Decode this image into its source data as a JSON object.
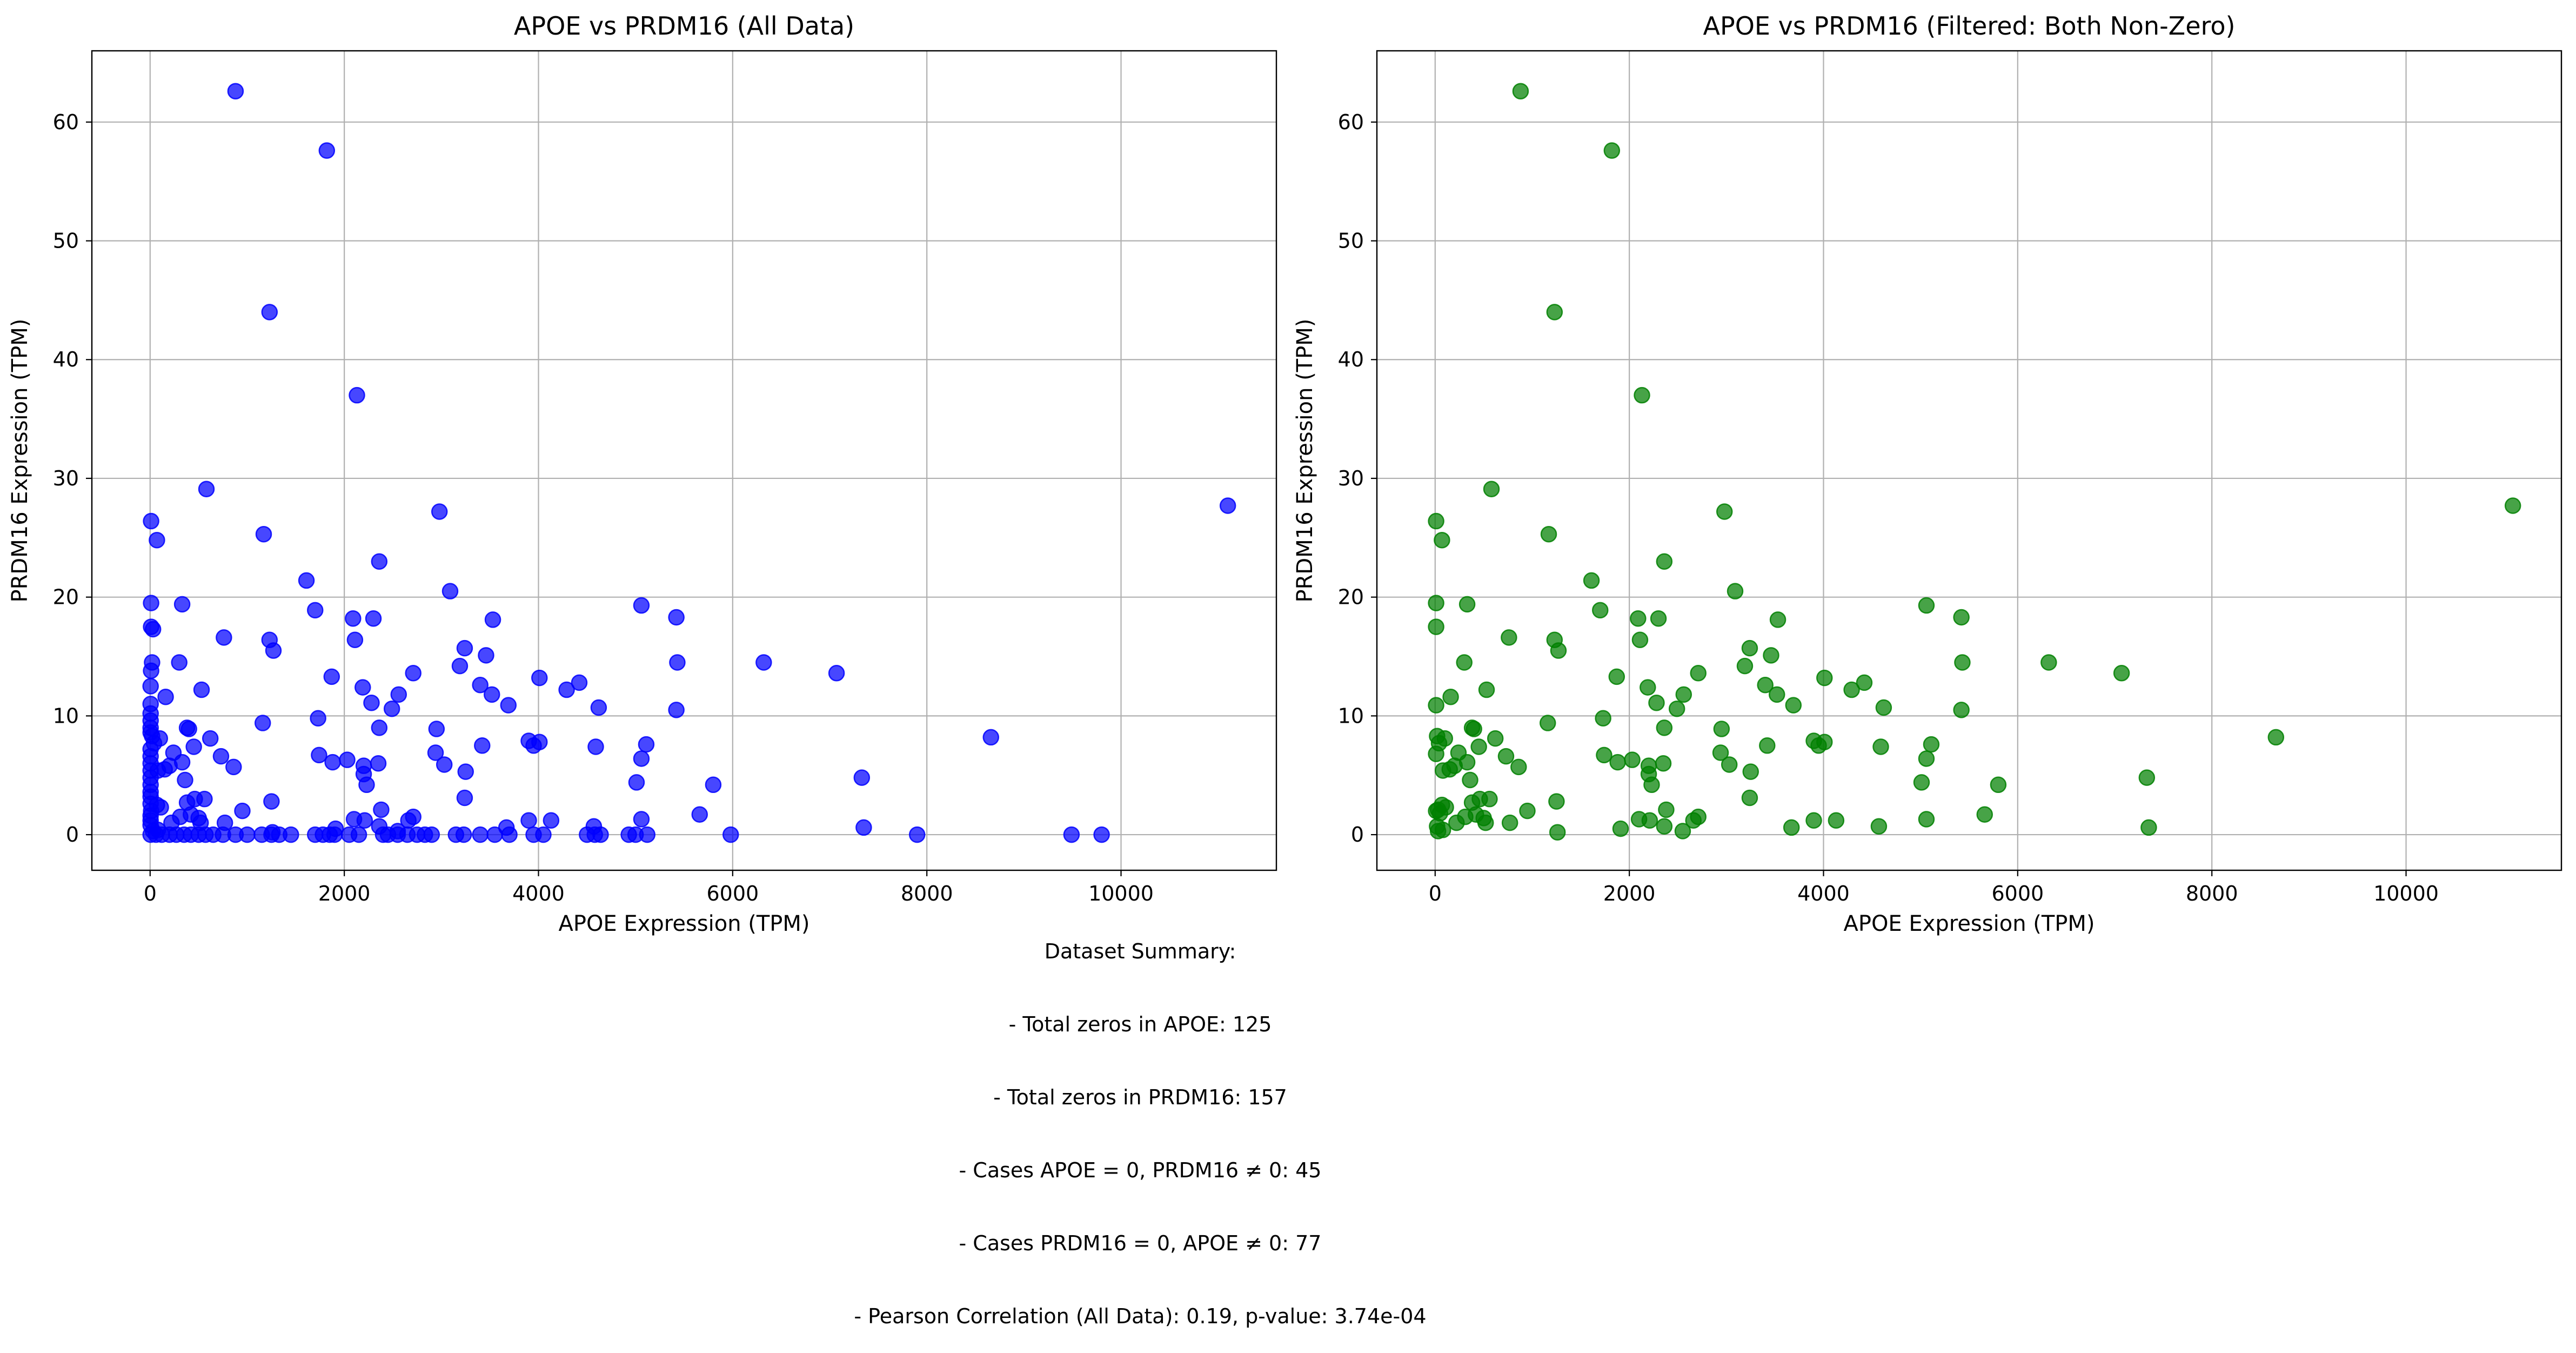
{
  "summary": {
    "heading": "Dataset Summary:",
    "lines": [
      "- Total zeros in APOE: 125",
      "- Total zeros in PRDM16: 157",
      "- Cases APOE = 0, PRDM16 ≠ 0: 45",
      "- Cases PRDM16 = 0, APOE ≠ 0: 77",
      "- Pearson Correlation (All Data): 0.19, p-value: 3.74e-04"
    ]
  },
  "chart_data": [
    {
      "type": "scatter",
      "title": "APOE vs PRDM16 (All Data)",
      "xlabel": "APOE Expression (TPM)",
      "ylabel": "PRDM16 Expression (TPM)",
      "color": "#0000ff",
      "xlim": [
        -600,
        11600
      ],
      "ylim": [
        -3,
        66
      ],
      "xticks": [
        0,
        2000,
        4000,
        6000,
        8000,
        10000
      ],
      "yticks": [
        0,
        10,
        20,
        30,
        40,
        50,
        60
      ],
      "grid": true,
      "points": [
        [
          880,
          62.6
        ],
        [
          1820,
          57.6
        ],
        [
          1230,
          44
        ],
        [
          2130,
          37
        ],
        [
          580,
          29.1
        ],
        [
          2980,
          27.2
        ],
        [
          11100,
          27.7
        ],
        [
          10,
          26.4
        ],
        [
          70,
          24.8
        ],
        [
          1170,
          25.3
        ],
        [
          2360,
          23
        ],
        [
          1610,
          21.4
        ],
        [
          3090,
          20.5
        ],
        [
          5060,
          19.3
        ],
        [
          10,
          19.5
        ],
        [
          330,
          19.4
        ],
        [
          1700,
          18.9
        ],
        [
          2090,
          18.2
        ],
        [
          2300,
          18.2
        ],
        [
          3530,
          18.1
        ],
        [
          5420,
          18.3
        ],
        [
          10,
          17.5
        ],
        [
          30,
          17.3
        ],
        [
          760,
          16.6
        ],
        [
          1230,
          16.4
        ],
        [
          2110,
          16.4
        ],
        [
          1270,
          15.5
        ],
        [
          3240,
          15.7
        ],
        [
          3460,
          15.1
        ],
        [
          300,
          14.5
        ],
        [
          3190,
          14.2
        ],
        [
          6320,
          14.5
        ],
        [
          5430,
          14.5
        ],
        [
          20,
          14.5
        ],
        [
          10,
          13.8
        ],
        [
          1870,
          13.3
        ],
        [
          2710,
          13.6
        ],
        [
          4010,
          13.2
        ],
        [
          4420,
          12.8
        ],
        [
          7070,
          13.6
        ],
        [
          530,
          12.2
        ],
        [
          2190,
          12.4
        ],
        [
          3400,
          12.6
        ],
        [
          4290,
          12.2
        ],
        [
          2560,
          11.8
        ],
        [
          3520,
          11.8
        ],
        [
          160,
          11.6
        ],
        [
          2280,
          11.1
        ],
        [
          2490,
          10.6
        ],
        [
          3690,
          10.9
        ],
        [
          4620,
          10.7
        ],
        [
          5420,
          10.5
        ],
        [
          1160,
          9.4
        ],
        [
          1730,
          9.8
        ],
        [
          2360,
          9
        ],
        [
          2950,
          8.9
        ],
        [
          380,
          9
        ],
        [
          400,
          8.9
        ],
        [
          620,
          8.1
        ],
        [
          100,
          8.1
        ],
        [
          8660,
          8.2
        ],
        [
          3900,
          7.9
        ],
        [
          3950,
          7.5
        ],
        [
          4010,
          7.8
        ],
        [
          3420,
          7.5
        ],
        [
          4590,
          7.4
        ],
        [
          5110,
          7.6
        ],
        [
          450,
          7.4
        ],
        [
          240,
          6.9
        ],
        [
          20,
          8.3
        ],
        [
          40,
          7.7
        ],
        [
          1740,
          6.7
        ],
        [
          2030,
          6.3
        ],
        [
          2940,
          6.9
        ],
        [
          730,
          6.6
        ],
        [
          330,
          6.1
        ],
        [
          1880,
          6.1
        ],
        [
          2350,
          6
        ],
        [
          3030,
          5.9
        ],
        [
          5060,
          6.4
        ],
        [
          200,
          5.8
        ],
        [
          860,
          5.7
        ],
        [
          2200,
          5.8
        ],
        [
          150,
          5.5
        ],
        [
          3250,
          5.3
        ],
        [
          80,
          5.4
        ],
        [
          2200,
          5.1
        ],
        [
          5010,
          4.4
        ],
        [
          360,
          4.6
        ],
        [
          5800,
          4.2
        ],
        [
          2230,
          4.2
        ],
        [
          7330,
          4.8
        ],
        [
          1250,
          2.8
        ],
        [
          3240,
          3.1
        ],
        [
          460,
          3
        ],
        [
          560,
          3
        ],
        [
          380,
          2.7
        ],
        [
          950,
          2
        ],
        [
          2380,
          2.1
        ],
        [
          5660,
          1.7
        ],
        [
          70,
          2.5
        ],
        [
          110,
          2.3
        ],
        [
          10,
          2
        ],
        [
          420,
          1.7
        ],
        [
          310,
          1.5
        ],
        [
          500,
          1.4
        ],
        [
          2100,
          1.3
        ],
        [
          2210,
          1.2
        ],
        [
          2710,
          1.5
        ],
        [
          2660,
          1.2
        ],
        [
          3900,
          1.2
        ],
        [
          4130,
          1.2
        ],
        [
          5060,
          1.3
        ],
        [
          220,
          1
        ],
        [
          520,
          1
        ],
        [
          770,
          1
        ],
        [
          2360,
          0.7
        ],
        [
          2550,
          0.3
        ],
        [
          3670,
          0.6
        ],
        [
          4570,
          0.7
        ],
        [
          7350,
          0.6
        ],
        [
          30,
          0.3
        ],
        [
          80,
          0.4
        ],
        [
          1260,
          0.2
        ],
        [
          1910,
          0.5
        ],
        [
          5,
          12.5
        ],
        [
          5,
          11
        ],
        [
          5,
          10.2
        ],
        [
          5,
          9.6
        ],
        [
          5,
          9
        ],
        [
          5,
          8.6
        ],
        [
          5,
          7.2
        ],
        [
          5,
          6.6
        ],
        [
          5,
          6
        ],
        [
          5,
          5.4
        ],
        [
          5,
          4.8
        ],
        [
          5,
          4.2
        ],
        [
          5,
          3.6
        ],
        [
          5,
          3.2
        ],
        [
          5,
          2.6
        ],
        [
          5,
          1.6
        ],
        [
          5,
          1.2
        ],
        [
          5,
          0.8
        ],
        [
          5,
          0
        ],
        [
          60,
          0
        ],
        [
          120,
          0
        ],
        [
          200,
          0
        ],
        [
          270,
          0
        ],
        [
          350,
          0
        ],
        [
          420,
          0
        ],
        [
          500,
          0
        ],
        [
          570,
          0
        ],
        [
          650,
          0
        ],
        [
          750,
          0
        ],
        [
          880,
          0
        ],
        [
          1000,
          0
        ],
        [
          1150,
          0
        ],
        [
          1250,
          0
        ],
        [
          1330,
          0
        ],
        [
          1450,
          0
        ],
        [
          1700,
          0
        ],
        [
          1780,
          0
        ],
        [
          1850,
          0
        ],
        [
          1900,
          0
        ],
        [
          2050,
          0
        ],
        [
          2150,
          0
        ],
        [
          2400,
          0
        ],
        [
          2450,
          0
        ],
        [
          2550,
          0
        ],
        [
          2650,
          0
        ],
        [
          2750,
          0
        ],
        [
          2830,
          0
        ],
        [
          2900,
          0
        ],
        [
          3150,
          0
        ],
        [
          3230,
          0
        ],
        [
          3400,
          0
        ],
        [
          3550,
          0
        ],
        [
          3700,
          0
        ],
        [
          3950,
          0
        ],
        [
          4050,
          0
        ],
        [
          4500,
          0
        ],
        [
          4580,
          0
        ],
        [
          4640,
          0
        ],
        [
          4930,
          0
        ],
        [
          5000,
          0
        ],
        [
          5120,
          0
        ],
        [
          5980,
          0
        ],
        [
          7900,
          0
        ],
        [
          9490,
          0
        ],
        [
          9800,
          0
        ]
      ]
    },
    {
      "type": "scatter",
      "title": "APOE vs PRDM16 (Filtered: Both Non-Zero)",
      "xlabel": "APOE Expression (TPM)",
      "ylabel": "PRDM16 Expression (TPM)",
      "color": "#008000",
      "xlim": [
        -600,
        11600
      ],
      "ylim": [
        -3,
        66
      ],
      "xticks": [
        0,
        2000,
        4000,
        6000,
        8000,
        10000
      ],
      "yticks": [
        0,
        10,
        20,
        30,
        40,
        50,
        60
      ],
      "grid": true,
      "points": [
        [
          880,
          62.6
        ],
        [
          1820,
          57.6
        ],
        [
          1230,
          44
        ],
        [
          2130,
          37
        ],
        [
          580,
          29.1
        ],
        [
          2980,
          27.2
        ],
        [
          11100,
          27.7
        ],
        [
          10,
          26.4
        ],
        [
          70,
          24.8
        ],
        [
          1170,
          25.3
        ],
        [
          2360,
          23
        ],
        [
          1610,
          21.4
        ],
        [
          3090,
          20.5
        ],
        [
          5060,
          19.3
        ],
        [
          10,
          19.5
        ],
        [
          330,
          19.4
        ],
        [
          1700,
          18.9
        ],
        [
          2090,
          18.2
        ],
        [
          2300,
          18.2
        ],
        [
          3530,
          18.1
        ],
        [
          5420,
          18.3
        ],
        [
          10,
          17.5
        ],
        [
          760,
          16.6
        ],
        [
          1230,
          16.4
        ],
        [
          2110,
          16.4
        ],
        [
          1270,
          15.5
        ],
        [
          3240,
          15.7
        ],
        [
          3460,
          15.1
        ],
        [
          300,
          14.5
        ],
        [
          3190,
          14.2
        ],
        [
          6320,
          14.5
        ],
        [
          5430,
          14.5
        ],
        [
          1870,
          13.3
        ],
        [
          2710,
          13.6
        ],
        [
          4010,
          13.2
        ],
        [
          4420,
          12.8
        ],
        [
          7070,
          13.6
        ],
        [
          530,
          12.2
        ],
        [
          2190,
          12.4
        ],
        [
          3400,
          12.6
        ],
        [
          4290,
          12.2
        ],
        [
          2560,
          11.8
        ],
        [
          3520,
          11.8
        ],
        [
          160,
          11.6
        ],
        [
          2280,
          11.1
        ],
        [
          2490,
          10.6
        ],
        [
          3690,
          10.9
        ],
        [
          4620,
          10.7
        ],
        [
          5420,
          10.5
        ],
        [
          10,
          10.9
        ],
        [
          1160,
          9.4
        ],
        [
          1730,
          9.8
        ],
        [
          2360,
          9
        ],
        [
          2950,
          8.9
        ],
        [
          380,
          9
        ],
        [
          400,
          8.9
        ],
        [
          620,
          8.1
        ],
        [
          100,
          8.1
        ],
        [
          8660,
          8.2
        ],
        [
          3900,
          7.9
        ],
        [
          3950,
          7.5
        ],
        [
          4010,
          7.8
        ],
        [
          3420,
          7.5
        ],
        [
          4590,
          7.4
        ],
        [
          5110,
          7.6
        ],
        [
          450,
          7.4
        ],
        [
          240,
          6.9
        ],
        [
          20,
          8.3
        ],
        [
          40,
          7.7
        ],
        [
          1740,
          6.7
        ],
        [
          2030,
          6.3
        ],
        [
          2940,
          6.9
        ],
        [
          730,
          6.6
        ],
        [
          330,
          6.1
        ],
        [
          1880,
          6.1
        ],
        [
          2350,
          6
        ],
        [
          3030,
          5.9
        ],
        [
          5060,
          6.4
        ],
        [
          200,
          5.8
        ],
        [
          860,
          5.7
        ],
        [
          2200,
          5.8
        ],
        [
          150,
          5.5
        ],
        [
          3250,
          5.3
        ],
        [
          80,
          5.4
        ],
        [
          2200,
          5.1
        ],
        [
          5010,
          4.4
        ],
        [
          360,
          4.6
        ],
        [
          5800,
          4.2
        ],
        [
          2230,
          4.2
        ],
        [
          7330,
          4.8
        ],
        [
          1250,
          2.8
        ],
        [
          3240,
          3.1
        ],
        [
          460,
          3
        ],
        [
          560,
          3
        ],
        [
          380,
          2.7
        ],
        [
          950,
          2
        ],
        [
          2380,
          2.1
        ],
        [
          5660,
          1.7
        ],
        [
          70,
          2.5
        ],
        [
          110,
          2.3
        ],
        [
          10,
          2
        ],
        [
          420,
          1.7
        ],
        [
          310,
          1.5
        ],
        [
          500,
          1.4
        ],
        [
          2100,
          1.3
        ],
        [
          2210,
          1.2
        ],
        [
          2710,
          1.5
        ],
        [
          2660,
          1.2
        ],
        [
          3900,
          1.2
        ],
        [
          4130,
          1.2
        ],
        [
          5060,
          1.3
        ],
        [
          220,
          1
        ],
        [
          520,
          1
        ],
        [
          770,
          1
        ],
        [
          2360,
          0.7
        ],
        [
          2550,
          0.3
        ],
        [
          3670,
          0.6
        ],
        [
          4570,
          0.7
        ],
        [
          7350,
          0.6
        ],
        [
          30,
          0.3
        ],
        [
          80,
          0.4
        ],
        [
          1260,
          0.2
        ],
        [
          1910,
          0.5
        ],
        [
          10,
          6.8
        ],
        [
          30,
          2.1
        ],
        [
          50,
          1.8
        ],
        [
          20,
          0.7
        ]
      ]
    }
  ]
}
